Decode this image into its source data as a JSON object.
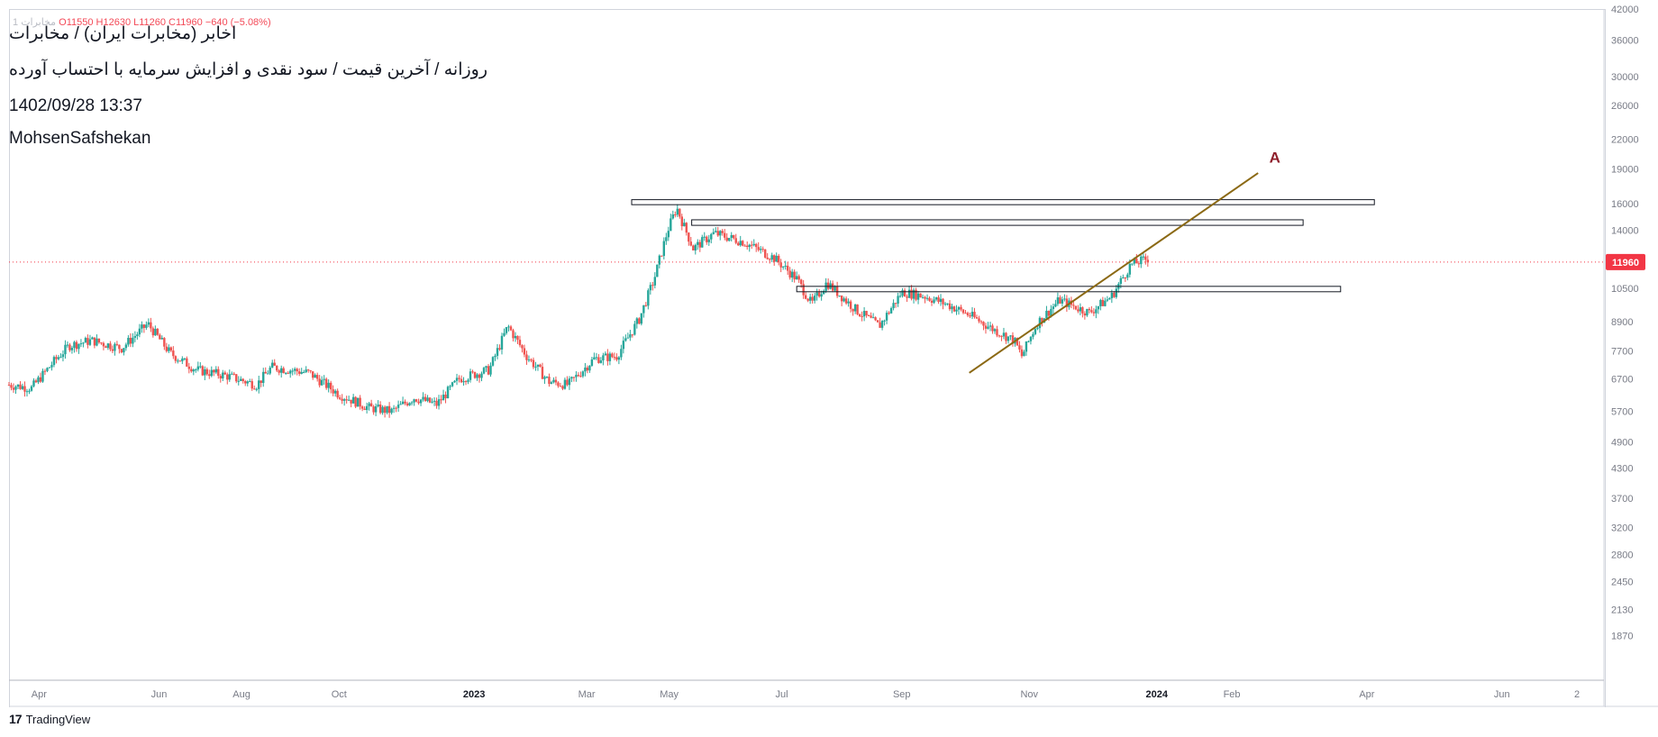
{
  "header": {
    "ohlc_symbol": "1  مخابرات",
    "ohlc_text": "O11550 H12630 L11260 C11960",
    "ohlc_change": "−640 (−5.08%)",
    "line1": "اخابر (مخابرات ایران) / مخابرات",
    "line2": "روزانه / آخرین قیمت / سود نقدی و افزایش سرمایه با احتساب آورده",
    "line3": "1402/09/28 13:37",
    "line4": "MohsenSafshekan"
  },
  "footer": {
    "brand_logo": "17",
    "brand_name": "TradingView"
  },
  "colors": {
    "up": "#26a69a",
    "down": "#ef5350",
    "trend": "#8b6914",
    "label_A": "#8e1e2a",
    "last_price_bg": "#f23645"
  },
  "chart_data": {
    "type": "candlestick",
    "title": "اخابر (مخابرات ایران) / مخابرات",
    "scale": "log",
    "ylim": [
      1500,
      42000
    ],
    "y_ticks": [
      42000,
      36000,
      30000,
      26000,
      22000,
      19000,
      16000,
      14000,
      11960,
      10500,
      8900,
      7700,
      6700,
      5700,
      4900,
      4300,
      3700,
      3200,
      2800,
      2450,
      2130,
      1870
    ],
    "y_tick_labels": [
      "42000",
      "36000",
      "30000",
      "26000",
      "22000",
      "19000",
      "16000",
      "14000",
      "11960",
      "10500",
      "8900",
      "7700",
      "6700",
      "5700",
      "4900",
      "4300",
      "3700",
      "3200",
      "2800",
      "2450",
      "2130",
      "1870"
    ],
    "last_price": 11960,
    "last_price_label": "11960",
    "x_ticks": [
      {
        "label": "Apr",
        "bold": false,
        "day": 40
      },
      {
        "label": "Jun",
        "bold": false,
        "day": 200
      },
      {
        "label": "Aug",
        "bold": false,
        "day": 310
      },
      {
        "label": "Oct",
        "bold": false,
        "day": 440
      },
      {
        "label": "2023",
        "bold": true,
        "day": 620
      },
      {
        "label": "Mar",
        "bold": false,
        "day": 770
      },
      {
        "label": "May",
        "bold": false,
        "day": 880
      },
      {
        "label": "Jul",
        "bold": false,
        "day": 1030
      },
      {
        "label": "Sep",
        "bold": false,
        "day": 1190
      },
      {
        "label": "Nov",
        "bold": false,
        "day": 1360
      },
      {
        "label": "2024",
        "bold": true,
        "day": 1530
      },
      {
        "label": "Feb",
        "bold": false,
        "day": 1630
      },
      {
        "label": "Apr",
        "bold": false,
        "day": 1810
      },
      {
        "label": "Jun",
        "bold": false,
        "day": 1990
      },
      {
        "label": "2",
        "bold": false,
        "day": 2090
      }
    ],
    "x_range_days": [
      0,
      2120
    ],
    "price_path": [
      [
        0,
        6500
      ],
      [
        30,
        6400
      ],
      [
        60,
        7300
      ],
      [
        80,
        7900
      ],
      [
        110,
        8100
      ],
      [
        150,
        7800
      ],
      [
        185,
        8800
      ],
      [
        215,
        7600
      ],
      [
        250,
        7000
      ],
      [
        290,
        6800
      ],
      [
        330,
        6500
      ],
      [
        350,
        7100
      ],
      [
        400,
        6900
      ],
      [
        440,
        6200
      ],
      [
        480,
        5800
      ],
      [
        510,
        5700
      ],
      [
        540,
        6100
      ],
      [
        570,
        5900
      ],
      [
        600,
        6700
      ],
      [
        640,
        7000
      ],
      [
        665,
        8700
      ],
      [
        690,
        7500
      ],
      [
        720,
        6600
      ],
      [
        745,
        6500
      ],
      [
        780,
        7400
      ],
      [
        810,
        7500
      ],
      [
        840,
        9000
      ],
      [
        860,
        11000
      ],
      [
        878,
        14000
      ],
      [
        890,
        15700
      ],
      [
        898,
        14500
      ],
      [
        912,
        12800
      ],
      [
        940,
        13800
      ],
      [
        980,
        13200
      ],
      [
        1020,
        12200
      ],
      [
        1050,
        11000
      ],
      [
        1070,
        9700
      ],
      [
        1090,
        10800
      ],
      [
        1130,
        9400
      ],
      [
        1160,
        8700
      ],
      [
        1190,
        10300
      ],
      [
        1220,
        10100
      ],
      [
        1250,
        9700
      ],
      [
        1280,
        9200
      ],
      [
        1310,
        8600
      ],
      [
        1340,
        8100
      ],
      [
        1350,
        7500
      ],
      [
        1370,
        8800
      ],
      [
        1400,
        9900
      ],
      [
        1440,
        9300
      ],
      [
        1470,
        10100
      ],
      [
        1495,
        11800
      ],
      [
        1520,
        12200
      ]
    ],
    "resistance_boxes": [
      {
        "day_start": 830,
        "day_end": 1820,
        "price_low": 15900,
        "price_high": 16300
      },
      {
        "day_start": 910,
        "day_end": 1725,
        "price_low": 14350,
        "price_high": 14750
      },
      {
        "day_start": 1050,
        "day_end": 1775,
        "price_low": 10320,
        "price_high": 10600
      }
    ],
    "trendline": {
      "start_day": 1280,
      "start_price": 6900,
      "end_day": 1665,
      "end_price": 18600
    },
    "annotations": [
      {
        "text": "A",
        "day": 1680,
        "price": 19600
      }
    ]
  }
}
